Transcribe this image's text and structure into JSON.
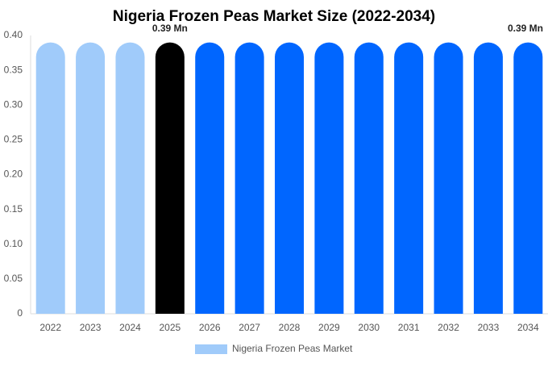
{
  "chart_data": {
    "type": "bar",
    "title": "Nigeria Frozen Peas Market Size (2022-2034)",
    "categories": [
      "2022",
      "2023",
      "2024",
      "2025",
      "2026",
      "2027",
      "2028",
      "2029",
      "2030",
      "2031",
      "2032",
      "2033",
      "2034"
    ],
    "series": [
      {
        "name": "Nigeria Frozen Peas Market",
        "color": "#a0cbfa",
        "colors": [
          "#a0cbfa",
          "#a0cbfa",
          "#a0cbfa",
          "#000000",
          "#0066ff",
          "#0066ff",
          "#0066ff",
          "#0066ff",
          "#0066ff",
          "#0066ff",
          "#0066ff",
          "#0066ff",
          "#0066ff"
        ],
        "values": [
          0.39,
          0.39,
          0.39,
          0.39,
          0.39,
          0.39,
          0.39,
          0.39,
          0.39,
          0.39,
          0.39,
          0.39,
          0.39
        ],
        "value_labels": [
          null,
          null,
          null,
          "0.39 Mn",
          null,
          null,
          null,
          null,
          null,
          null,
          null,
          null,
          "0.39 Mn"
        ]
      }
    ],
    "ylim": [
      0,
      0.4
    ],
    "yticks": [
      0,
      0.05,
      {
        "value": 0.1,
        "label": "0.10"
      },
      0.15,
      {
        "value": 0.2,
        "label": "0.20"
      },
      0.25,
      {
        "value": 0.3,
        "label": "0.30"
      },
      0.35,
      {
        "value": 0.4,
        "label": "0.40"
      }
    ],
    "grid": false
  }
}
